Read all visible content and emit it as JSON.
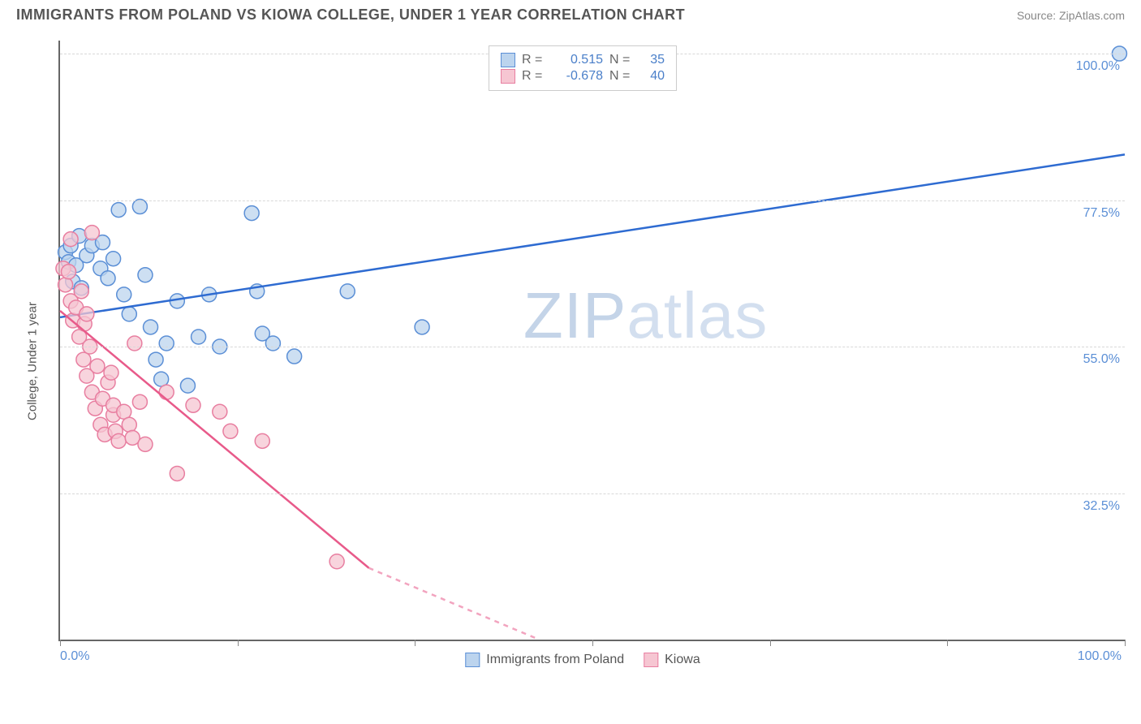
{
  "header": {
    "title": "IMMIGRANTS FROM POLAND VS KIOWA COLLEGE, UNDER 1 YEAR CORRELATION CHART",
    "source": "Source: ZipAtlas.com"
  },
  "chart": {
    "type": "scatter",
    "ylabel": "College, Under 1 year",
    "watermark": {
      "bold": "ZIP",
      "light": "atlas"
    },
    "background_color": "#ffffff",
    "grid_color": "#d8d8d8",
    "axis_color": "#666666",
    "tick_label_color": "#5b8fd6",
    "xlim": [
      0,
      100
    ],
    "ylim": [
      10,
      102
    ],
    "y_gridlines": [
      32.5,
      55.0,
      77.5,
      100.0
    ],
    "y_tick_labels": [
      "32.5%",
      "55.0%",
      "77.5%",
      "100.0%"
    ],
    "x_ticks": [
      0,
      16.67,
      33.33,
      50,
      66.67,
      83.33,
      100
    ],
    "x_tick_labels": {
      "left": "0.0%",
      "right": "100.0%"
    },
    "legend_top": {
      "rows": [
        {
          "swatch_fill": "#bcd4ee",
          "swatch_border": "#5b8fd6",
          "r_label": "R =",
          "r_value": "0.515",
          "n_label": "N =",
          "n_value": "35"
        },
        {
          "swatch_fill": "#f6c6d2",
          "swatch_border": "#e87ea0",
          "r_label": "R =",
          "r_value": "-0.678",
          "n_label": "N =",
          "n_value": "40"
        }
      ]
    },
    "legend_bottom": {
      "items": [
        {
          "swatch_fill": "#bcd4ee",
          "swatch_border": "#5b8fd6",
          "label": "Immigrants from Poland"
        },
        {
          "swatch_fill": "#f6c6d2",
          "swatch_border": "#e87ea0",
          "label": "Kiowa"
        }
      ]
    },
    "series": [
      {
        "name": "Immigrants from Poland",
        "marker_fill": "#bcd4ee",
        "marker_stroke": "#5b8fd6",
        "marker_opacity": 0.75,
        "marker_radius": 9,
        "trend_color": "#2e6bd1",
        "trend_width": 2.5,
        "trend": {
          "x1": 0,
          "y1": 59.5,
          "x2": 100,
          "y2": 84.5
        },
        "points": [
          [
            0.5,
            69.5
          ],
          [
            0.8,
            68.0
          ],
          [
            1.0,
            70.5
          ],
          [
            1.2,
            65.0
          ],
          [
            1.5,
            67.5
          ],
          [
            1.8,
            72.0
          ],
          [
            2.5,
            69.0
          ],
          [
            2.0,
            64.0
          ],
          [
            3.0,
            70.5
          ],
          [
            3.8,
            67.0
          ],
          [
            4.0,
            71.0
          ],
          [
            4.5,
            65.5
          ],
          [
            5.0,
            68.5
          ],
          [
            5.5,
            76.0
          ],
          [
            6.0,
            63.0
          ],
          [
            6.5,
            60.0
          ],
          [
            7.5,
            76.5
          ],
          [
            8.0,
            66.0
          ],
          [
            8.5,
            58.0
          ],
          [
            9.0,
            53.0
          ],
          [
            9.5,
            50.0
          ],
          [
            10.0,
            55.5
          ],
          [
            11.0,
            62.0
          ],
          [
            12.0,
            49.0
          ],
          [
            13.0,
            56.5
          ],
          [
            14.0,
            63.0
          ],
          [
            15.0,
            55.0
          ],
          [
            18.0,
            75.5
          ],
          [
            18.5,
            63.5
          ],
          [
            19.0,
            57.0
          ],
          [
            20.0,
            55.5
          ],
          [
            22.0,
            53.5
          ],
          [
            27.0,
            63.5
          ],
          [
            34.0,
            58.0
          ],
          [
            99.5,
            100.0
          ]
        ]
      },
      {
        "name": "Kiowa",
        "marker_fill": "#f6c6d2",
        "marker_stroke": "#e87ea0",
        "marker_opacity": 0.75,
        "marker_radius": 9,
        "trend_color": "#e85a8a",
        "trend_width": 2.5,
        "trend": {
          "x1": 0,
          "y1": 60.5,
          "x2": 29,
          "y2": 21.0
        },
        "trend_dash": {
          "x1": 29,
          "y1": 21.0,
          "x2": 45,
          "y2": 10.0
        },
        "points": [
          [
            0.3,
            67.0
          ],
          [
            0.5,
            64.5
          ],
          [
            0.8,
            66.5
          ],
          [
            1.0,
            62.0
          ],
          [
            1.2,
            59.0
          ],
          [
            1.0,
            71.5
          ],
          [
            1.5,
            61.0
          ],
          [
            1.8,
            56.5
          ],
          [
            2.0,
            63.5
          ],
          [
            2.3,
            58.5
          ],
          [
            2.2,
            53.0
          ],
          [
            2.5,
            50.5
          ],
          [
            2.8,
            55.0
          ],
          [
            2.5,
            60.0
          ],
          [
            3.0,
            72.5
          ],
          [
            3.0,
            48.0
          ],
          [
            3.3,
            45.5
          ],
          [
            3.5,
            52.0
          ],
          [
            3.8,
            43.0
          ],
          [
            4.0,
            47.0
          ],
          [
            4.2,
            41.5
          ],
          [
            4.5,
            49.5
          ],
          [
            5.0,
            44.5
          ],
          [
            4.8,
            51.0
          ],
          [
            5.2,
            42.0
          ],
          [
            5.0,
            46.0
          ],
          [
            5.5,
            40.5
          ],
          [
            6.0,
            45.0
          ],
          [
            6.5,
            43.0
          ],
          [
            6.8,
            41.0
          ],
          [
            7.0,
            55.5
          ],
          [
            7.5,
            46.5
          ],
          [
            8.0,
            40.0
          ],
          [
            10.0,
            48.0
          ],
          [
            11.0,
            35.5
          ],
          [
            12.5,
            46.0
          ],
          [
            15.0,
            45.0
          ],
          [
            16.0,
            42.0
          ],
          [
            19.0,
            40.5
          ],
          [
            26.0,
            22.0
          ]
        ]
      }
    ]
  }
}
